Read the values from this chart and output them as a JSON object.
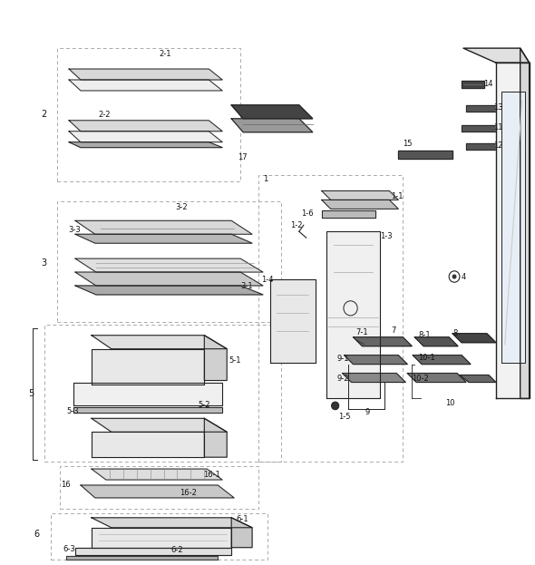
{
  "bg_color": "#ffffff",
  "line_color": "#222222",
  "dash_color": "#999999",
  "gray_dark": "#555555",
  "gray_mid": "#888888",
  "gray_light": "#cccccc",
  "gray_vlight": "#e8e8e8",
  "gray_fill": "#dddddd"
}
